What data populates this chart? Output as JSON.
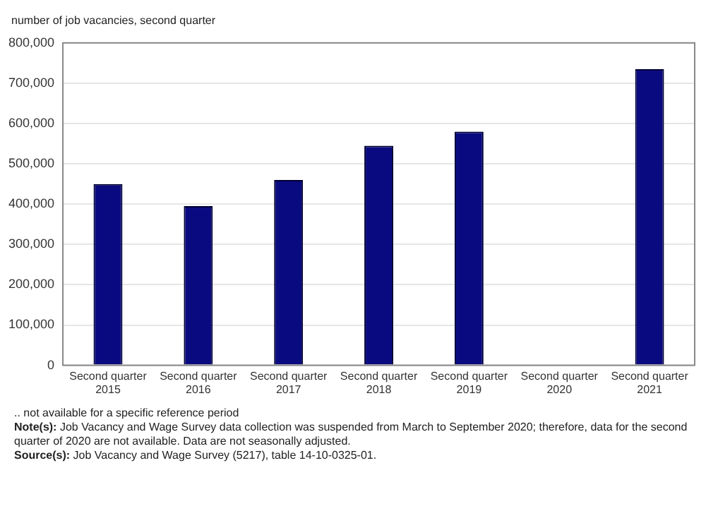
{
  "chart_data": {
    "type": "bar",
    "ylabel": "number of job vacancies, second quarter",
    "categories": [
      "Second quarter 2015",
      "Second quarter 2016",
      "Second quarter 2017",
      "Second quarter 2018",
      "Second quarter 2019",
      "Second quarter 2020",
      "Second quarter 2021"
    ],
    "values": [
      450000,
      395000,
      460000,
      545000,
      580000,
      null,
      735000
    ],
    "color": "#0a0a80",
    "ylim": [
      0,
      800000
    ],
    "yticks": [
      0,
      {
        "value": 100000,
        "label": "100,000"
      },
      {
        "value": 200000,
        "label": "200,000"
      },
      {
        "value": 300000,
        "label": "300,000"
      },
      {
        "value": 400000,
        "label": "400,000"
      },
      {
        "value": 500000,
        "label": "500,000"
      },
      {
        "value": 600000,
        "label": "600,000"
      },
      {
        "value": 700000,
        "label": "700,000"
      },
      {
        "value": 800000,
        "label": "800,000"
      }
    ],
    "grid": "y",
    "legend": false,
    "annotations": [
      ".. not available for a specific reference period",
      "Note(s): Job Vacancy and Wage Survey data collection was suspended from March to September 2020; therefore, data for the second quarter of 2020 are not available. Data are not seasonally adjusted.",
      "Source(s): Job Vacancy and Wage Survey (5217), table 14-10-0325-01."
    ]
  }
}
